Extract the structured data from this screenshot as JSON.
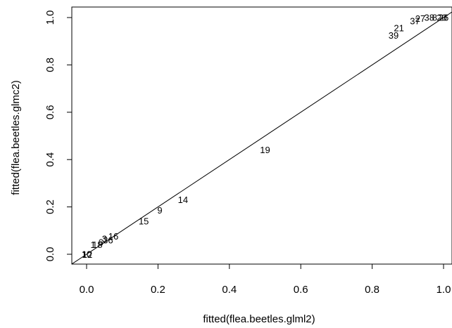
{
  "chart_data": {
    "type": "scatter",
    "xlabel": "fitted(flea.beetles.glml2)",
    "ylabel": "fitted(flea.beetles.glmc2)",
    "xlim": [
      -0.04,
      1.0
    ],
    "ylim": [
      -0.04,
      1.04
    ],
    "x_ticks": [
      0.0,
      0.2,
      0.4,
      0.6,
      0.8,
      1.0
    ],
    "x_tick_labels": [
      "0.0",
      "0.2",
      "0.4",
      "0.6",
      "0.8",
      "1.0"
    ],
    "y_ticks": [
      0.0,
      0.2,
      0.4,
      0.6,
      0.8,
      1.0
    ],
    "y_tick_labels": [
      "0.0",
      "0.2",
      "0.4",
      "0.6",
      "0.8",
      "1.0"
    ],
    "reference_line": {
      "intercept": 0,
      "slope": 1
    },
    "points": [
      {
        "label": "19",
        "x": 0.5,
        "y": 0.44
      },
      {
        "label": "14",
        "x": 0.27,
        "y": 0.23
      },
      {
        "label": "9",
        "x": 0.205,
        "y": 0.185
      },
      {
        "label": "15",
        "x": 0.16,
        "y": 0.14
      },
      {
        "label": "16",
        "x": 0.075,
        "y": 0.075
      },
      {
        "label": "36",
        "x": 0.06,
        "y": 0.06
      },
      {
        "label": "3",
        "x": 0.05,
        "y": 0.065
      },
      {
        "label": "6",
        "x": 0.04,
        "y": 0.05
      },
      {
        "label": "18",
        "x": 0.03,
        "y": 0.04
      },
      {
        "label": "1",
        "x": 0.018,
        "y": 0.04
      },
      {
        "label": "10",
        "x": 0.0,
        "y": 0.0
      },
      {
        "label": "12",
        "x": 0.002,
        "y": -0.002
      },
      {
        "label": "39",
        "x": 0.86,
        "y": 0.925
      },
      {
        "label": "21",
        "x": 0.875,
        "y": 0.955
      },
      {
        "label": "37",
        "x": 0.92,
        "y": 0.985
      },
      {
        "label": "27",
        "x": 0.935,
        "y": 0.995
      },
      {
        "label": "38",
        "x": 0.96,
        "y": 1.0
      },
      {
        "label": "8",
        "x": 0.975,
        "y": 1.0
      },
      {
        "label": "20",
        "x": 0.995,
        "y": 1.0
      },
      {
        "label": "26",
        "x": 1.0,
        "y": 1.0
      }
    ]
  }
}
